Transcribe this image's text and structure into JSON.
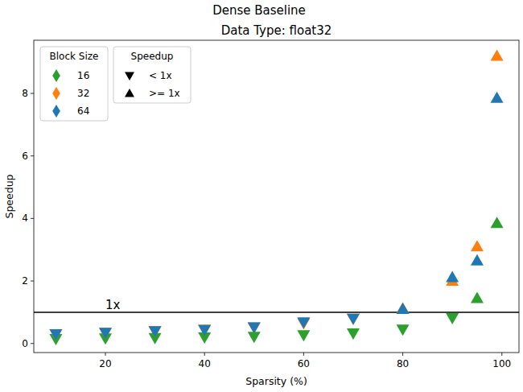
{
  "chart_data": {
    "type": "scatter",
    "title": "Dense Baseline",
    "subtitle": "Data Type: float32",
    "x_label": "Sparsity (%)",
    "y_label": "Speedup",
    "x": [
      10,
      20,
      30,
      40,
      50,
      60,
      70,
      80,
      90,
      95,
      99
    ],
    "series": [
      {
        "name": "16",
        "color": "#2ca02c",
        "marker": "diamond",
        "values": [
          0.15,
          0.17,
          0.18,
          0.2,
          0.22,
          0.27,
          0.33,
          0.45,
          0.82,
          1.45,
          3.85
        ]
      },
      {
        "name": "32",
        "color": "#ff7f0e",
        "marker": "diamond",
        "values": [
          0.3,
          0.35,
          0.4,
          0.45,
          0.52,
          0.65,
          0.8,
          1.12,
          2.0,
          3.1,
          9.2
        ]
      },
      {
        "name": "64",
        "color": "#1f77b4",
        "marker": "diamond",
        "values": [
          0.3,
          0.35,
          0.4,
          0.44,
          0.52,
          0.68,
          0.8,
          1.1,
          2.12,
          2.65,
          7.85
        ]
      }
    ],
    "legend_title": "Block Size",
    "legend": "upper left",
    "speedup_legend": {
      "title": "Speedup",
      "entries": [
        {
          "label": "< 1x",
          "marker": "triangle-down"
        },
        {
          "label": ">= 1x",
          "marker": "triangle-up"
        }
      ]
    },
    "annotations": [
      {
        "text": "1x",
        "x": 20,
        "y": 1
      }
    ],
    "xlim": [
      5.55,
      103.45
    ],
    "ylim": [
      -0.29,
      9.7
    ],
    "xticks": [
      20,
      40,
      60,
      80,
      100
    ],
    "yticks": [
      0,
      2,
      4,
      6,
      8
    ],
    "grid": false
  }
}
